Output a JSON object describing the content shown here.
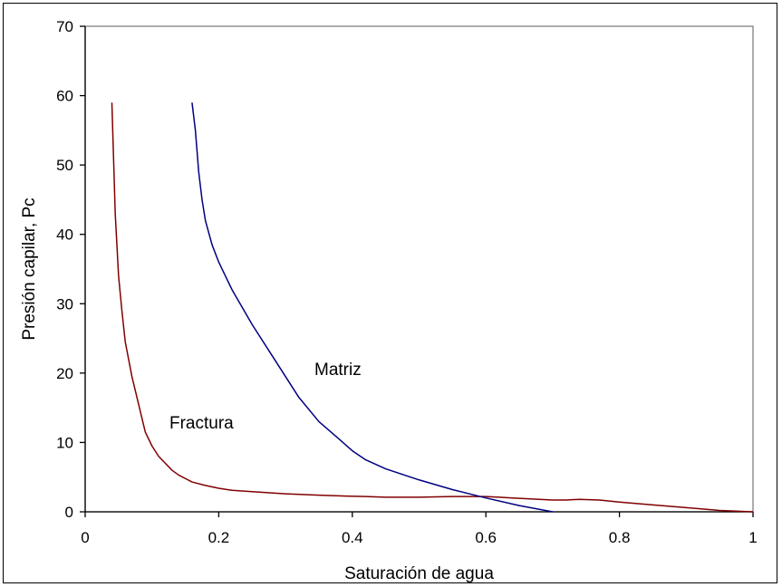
{
  "chart_data": {
    "type": "line",
    "xlabel": "Saturación de agua",
    "ylabel": "Presión capilar, Pc",
    "xlim": [
      0,
      1
    ],
    "ylim": [
      0,
      70
    ],
    "xticks": [
      0,
      0.2,
      0.4,
      0.6,
      0.8,
      1
    ],
    "xtick_labels": [
      "0",
      "0.2",
      "0.4",
      "0.6",
      "0.8",
      "1"
    ],
    "yticks": [
      0,
      10,
      20,
      30,
      40,
      50,
      60,
      70
    ],
    "ytick_labels": [
      "0",
      "10",
      "20",
      "30",
      "40",
      "50",
      "60",
      "70"
    ],
    "grid": false,
    "plot_area_border_color": "#808080",
    "annotations": [
      {
        "text": "Matriz",
        "series": "matriz"
      },
      {
        "text": "Fractura",
        "series": "fractura"
      }
    ],
    "series": [
      {
        "id": "fractura",
        "color": "#800000",
        "x": [
          0.04,
          0.045,
          0.05,
          0.055,
          0.06,
          0.07,
          0.08,
          0.09,
          0.1,
          0.11,
          0.12,
          0.13,
          0.14,
          0.15,
          0.16,
          0.18,
          0.2,
          0.22,
          0.25,
          0.3,
          0.35,
          0.38,
          0.42,
          0.45,
          0.5,
          0.55,
          0.6,
          0.62,
          0.64,
          0.66,
          0.68,
          0.7,
          0.72,
          0.74,
          0.77,
          0.8,
          0.85,
          0.9,
          0.95,
          1.0
        ],
        "y": [
          59,
          43,
          34,
          29,
          24.5,
          19.5,
          15.5,
          11.5,
          9.5,
          8,
          7,
          6,
          5.3,
          4.8,
          4.3,
          3.8,
          3.4,
          3.1,
          2.9,
          2.6,
          2.4,
          2.3,
          2.2,
          2.1,
          2.1,
          2.2,
          2.2,
          2.1,
          2.0,
          1.9,
          1.8,
          1.7,
          1.7,
          1.8,
          1.7,
          1.4,
          1.0,
          0.6,
          0.2,
          0
        ]
      },
      {
        "id": "matriz",
        "color": "#000080",
        "x": [
          0.16,
          0.165,
          0.17,
          0.175,
          0.18,
          0.19,
          0.2,
          0.21,
          0.22,
          0.25,
          0.28,
          0.3,
          0.32,
          0.35,
          0.38,
          0.4,
          0.42,
          0.45,
          0.5,
          0.55,
          0.6,
          0.65,
          0.7
        ],
        "y": [
          59,
          55,
          49,
          45,
          42,
          38.5,
          36,
          34,
          32,
          27,
          22.5,
          19.5,
          16.5,
          13,
          10.5,
          8.8,
          7.5,
          6.2,
          4.6,
          3.2,
          2.0,
          0.9,
          0
        ]
      }
    ]
  }
}
